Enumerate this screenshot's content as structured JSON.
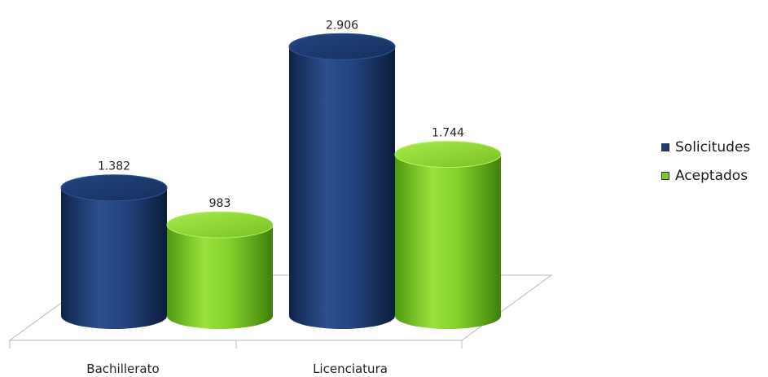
{
  "chart_data": {
    "type": "bar",
    "categories": [
      "Bachillerato",
      "Licenciatura"
    ],
    "series": [
      {
        "name": "Solicitudes",
        "values": [
          1382,
          2906
        ],
        "labels": [
          "1.382",
          "2.906"
        ],
        "color": "#1c3a73"
      },
      {
        "name": "Aceptados",
        "values": [
          983,
          1744
        ],
        "labels": [
          "983",
          "1.744"
        ],
        "color": "#7ec928"
      }
    ],
    "legend_position": "right",
    "style": "3d-cylinder",
    "grid": false
  }
}
